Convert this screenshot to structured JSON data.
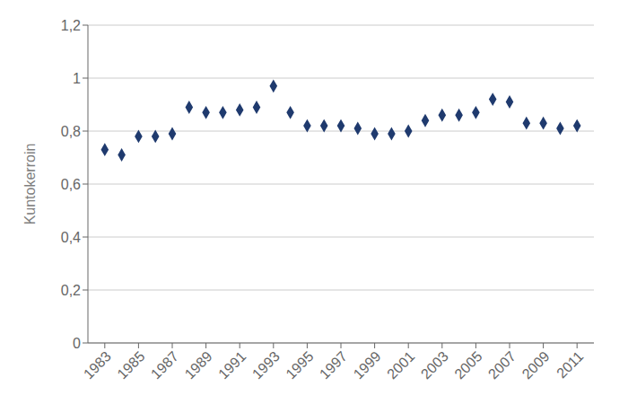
{
  "chart_data": {
    "type": "scatter",
    "x": [
      1983,
      1984,
      1985,
      1986,
      1987,
      1988,
      1989,
      1990,
      1991,
      1992,
      1993,
      1994,
      1995,
      1996,
      1997,
      1998,
      1999,
      2000,
      2001,
      2002,
      2003,
      2004,
      2005,
      2006,
      2007,
      2008,
      2009,
      2010,
      2011
    ],
    "values": [
      0.73,
      0.71,
      0.78,
      0.78,
      0.79,
      0.89,
      0.87,
      0.87,
      0.88,
      0.89,
      0.97,
      0.87,
      0.82,
      0.82,
      0.82,
      0.81,
      0.79,
      0.79,
      0.8,
      0.84,
      0.86,
      0.86,
      0.87,
      0.92,
      0.91,
      0.83,
      0.83,
      0.81,
      0.82
    ],
    "color": "#1F3A6E",
    "marker": "diamond",
    "ylabel": "Kuntokerroin",
    "ylim": [
      0,
      1.2
    ],
    "yticks": [
      0,
      {
        "value": 0.2,
        "label": "0,2"
      },
      {
        "value": 0.4,
        "label": "0,4"
      },
      {
        "value": 0.6,
        "label": "0,6"
      },
      {
        "value": 0.8,
        "label": "0,8"
      },
      1,
      {
        "value": 1.2,
        "label": "1,2"
      }
    ],
    "xlim": [
      1982,
      2012
    ],
    "xticks": [
      1983,
      1985,
      1987,
      1989,
      1991,
      1993,
      1995,
      1997,
      1999,
      2001,
      2003,
      2005,
      2007,
      2009,
      2011
    ],
    "grid": true
  }
}
